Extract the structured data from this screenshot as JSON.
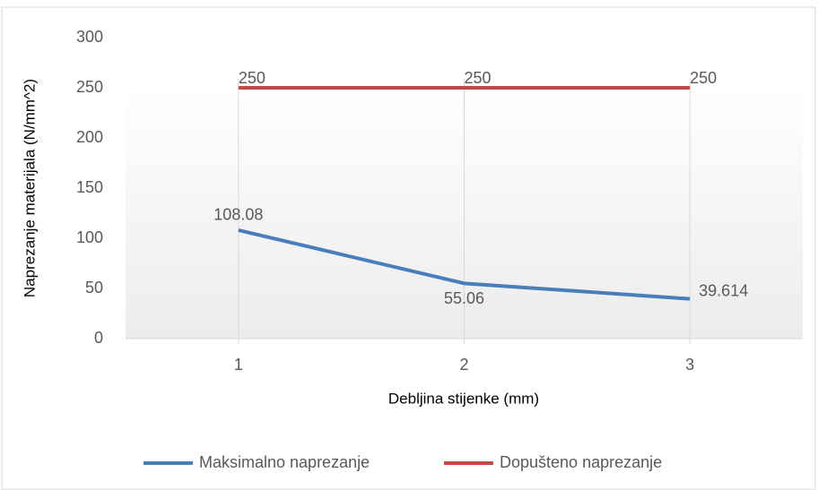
{
  "chart_data": {
    "type": "line",
    "x_label": "Debljina stijenke (mm)",
    "y_label": "Naprezanje materijala (N/mm^2)",
    "categories": [
      1,
      2,
      3
    ],
    "series": [
      {
        "name": "Maksimalno naprezanje",
        "color": "#4a7ebb",
        "values": [
          108.08,
          55.06,
          39.614
        ]
      },
      {
        "name": "Dopušteno naprezanje",
        "color": "#be4b48",
        "values": [
          250,
          250,
          250
        ]
      }
    ],
    "ylim": [
      0,
      300
    ],
    "yticks": [
      0,
      50,
      100,
      150,
      200,
      250,
      300
    ],
    "legend": "bottom"
  }
}
